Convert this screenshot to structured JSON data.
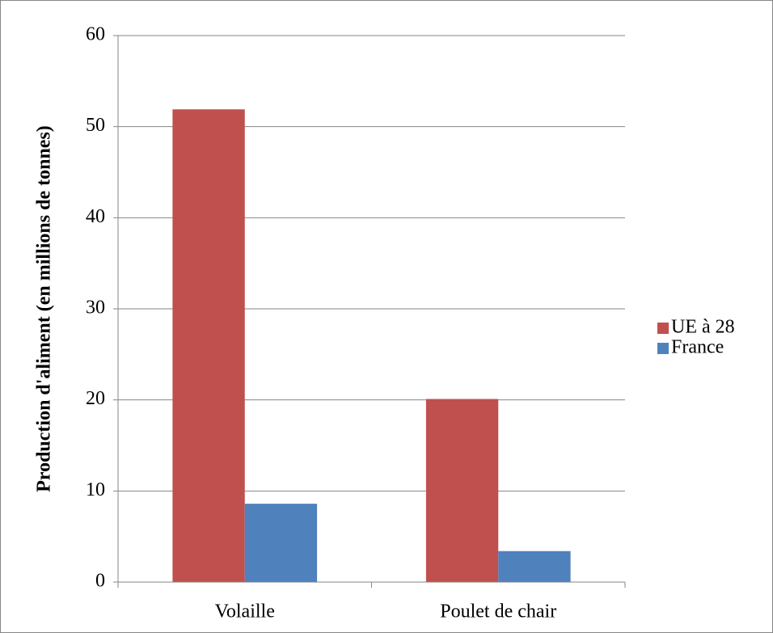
{
  "chart_data": {
    "type": "bar",
    "y_label": "Production d'aliment (en millions de tonnes)",
    "categories": [
      "Volaille",
      "Poulet de chair"
    ],
    "series": [
      {
        "name": "UE à 28",
        "color": "#c0504d",
        "values": [
          51.9,
          20.1
        ]
      },
      {
        "name": "France",
        "color": "#4f81bd",
        "values": [
          8.6,
          3.4
        ]
      }
    ],
    "ylim": [
      0,
      60
    ],
    "yticks": [
      0,
      10,
      20,
      30,
      40,
      50,
      60
    ],
    "grid": true,
    "legend": "right"
  }
}
